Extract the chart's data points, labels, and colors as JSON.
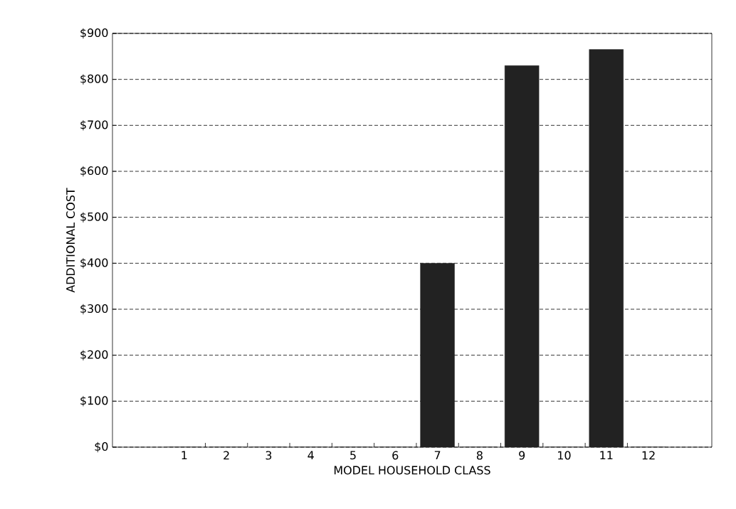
{
  "chart_data": {
    "type": "bar",
    "xlabel": "MODEL HOUSEHOLD CLASS",
    "ylabel": "ADDITIONAL COST",
    "categories": [
      "1",
      "2",
      "3",
      "4",
      "5",
      "6",
      "7",
      "8",
      "9",
      "10",
      "11",
      "12"
    ],
    "values": [
      0,
      0,
      0,
      0,
      0,
      0,
      400,
      0,
      830,
      0,
      865,
      0
    ],
    "color": "#222222",
    "ylim": [
      0,
      900
    ],
    "yticks": [
      {
        "value": 0,
        "label": "$0"
      },
      {
        "value": 100,
        "label": "$100"
      },
      {
        "value": 200,
        "label": "$200"
      },
      {
        "value": 300,
        "label": "$300"
      },
      {
        "value": 400,
        "label": "$400"
      },
      {
        "value": 500,
        "label": "$500"
      },
      {
        "value": 600,
        "label": "$600"
      },
      {
        "value": 700,
        "label": "$700"
      },
      {
        "value": 800,
        "label": "$800"
      },
      {
        "value": 900,
        "label": "$900"
      }
    ],
    "grid": "y"
  }
}
